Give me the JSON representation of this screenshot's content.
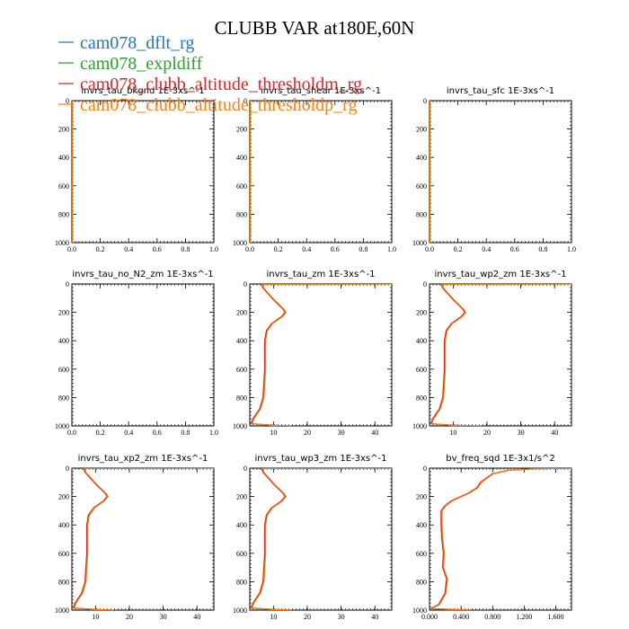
{
  "figure": {
    "title": "CLUBB VAR at180E,60N",
    "legend": [
      {
        "label": "cam078_dflt_rg",
        "color": "#1f77b4"
      },
      {
        "label": "cam078_expldiff",
        "color": "#2ca02c"
      },
      {
        "label": "cam078_clubb_altitude_thresholdm_rg",
        "color": "#d62728"
      },
      {
        "label": "cam078_clubb_altitude_thresholdp_rg",
        "color": "#ff7f0e"
      }
    ]
  },
  "chart_data": [
    {
      "type": "line",
      "title": "invrs_tau_bkgnd   1E-3xs^-1",
      "xlim": [
        0,
        1
      ],
      "ylim": [
        1000,
        0
      ],
      "xticks": [
        0,
        0.2,
        0.4,
        0.6,
        0.8,
        1.0
      ],
      "xtick_labels": [
        "0.0",
        "0.2",
        "0.4",
        "0.6",
        "0.8",
        "1.0"
      ],
      "yticks": [
        0,
        200,
        400,
        600,
        800,
        1000
      ],
      "ytick_labels": [
        "0",
        "200",
        "400",
        "600",
        "800",
        "1000"
      ],
      "profile": [
        [
          0,
          0
        ],
        [
          0,
          1000
        ]
      ]
    },
    {
      "type": "line",
      "title": "invrs_tau_shear   1E-3xs^-1",
      "xlim": [
        0,
        1
      ],
      "ylim": [
        1000,
        0
      ],
      "xticks": [
        0,
        0.2,
        0.4,
        0.6,
        0.8,
        1.0
      ],
      "xtick_labels": [
        "0.0",
        "0.2",
        "0.4",
        "0.6",
        "0.8",
        "1.0"
      ],
      "yticks": [
        0,
        200,
        400,
        600,
        800,
        1000
      ],
      "ytick_labels": [
        "0",
        "200",
        "400",
        "600",
        "800",
        "1000"
      ],
      "profile": [
        [
          0,
          0
        ],
        [
          0,
          1000
        ]
      ]
    },
    {
      "type": "line",
      "title": "invrs_tau_sfc   1E-3xs^-1",
      "xlim": [
        0,
        1
      ],
      "ylim": [
        1000,
        0
      ],
      "xticks": [
        0,
        0.2,
        0.4,
        0.6,
        0.8,
        1.0
      ],
      "xtick_labels": [
        "0.0",
        "0.2",
        "0.4",
        "0.6",
        "0.8",
        "1.0"
      ],
      "yticks": [
        0,
        200,
        400,
        600,
        800,
        1000
      ],
      "ytick_labels": [
        "0",
        "200",
        "400",
        "600",
        "800",
        "1000"
      ],
      "profile": [
        [
          0,
          0
        ],
        [
          0,
          1000
        ]
      ]
    },
    {
      "type": "line",
      "title": "invrs_tau_no_N2_zm   1E-3xs^-1",
      "xlim": [
        0,
        1
      ],
      "ylim": [
        1000,
        0
      ],
      "xticks": [
        0,
        0.2,
        0.4,
        0.6,
        0.8,
        1.0
      ],
      "xtick_labels": [
        "0.0",
        "0.2",
        "0.4",
        "0.6",
        "0.8",
        "1.0"
      ],
      "yticks": [
        0,
        200,
        400,
        600,
        800,
        1000
      ],
      "ytick_labels": [
        "0",
        "200",
        "400",
        "600",
        "800",
        "1000"
      ],
      "profile": []
    },
    {
      "type": "line",
      "title": "invrs_tau_zm   1E-3xs^-1",
      "xlim": [
        3,
        45
      ],
      "ylim": [
        1000,
        0
      ],
      "xticks": [
        10,
        20,
        30,
        40
      ],
      "xtick_labels": [
        "10",
        "20",
        "30",
        "40"
      ],
      "yticks": [
        0,
        200,
        400,
        600,
        800,
        1000
      ],
      "ytick_labels": [
        "0",
        "200",
        "400",
        "600",
        "800",
        "1000"
      ],
      "profile": [
        [
          45,
          0
        ],
        [
          6.5,
          2
        ],
        [
          7,
          30
        ],
        [
          10,
          110
        ],
        [
          13,
          180
        ],
        [
          13.5,
          200
        ],
        [
          12.5,
          230
        ],
        [
          9.5,
          280
        ],
        [
          8,
          330
        ],
        [
          7.5,
          400
        ],
        [
          7.5,
          600
        ],
        [
          7,
          800
        ],
        [
          6,
          880
        ],
        [
          4,
          950
        ],
        [
          3.5,
          985
        ],
        [
          10,
          996
        ],
        [
          15,
          1000
        ]
      ]
    },
    {
      "type": "line",
      "title": "invrs_tau_wp2_zm   1E-3xs^-1",
      "xlim": [
        3,
        45
      ],
      "ylim": [
        1000,
        0
      ],
      "xticks": [
        10,
        20,
        30,
        40
      ],
      "xtick_labels": [
        "10",
        "20",
        "30",
        "40"
      ],
      "yticks": [
        0,
        200,
        400,
        600,
        800,
        1000
      ],
      "ytick_labels": [
        "0",
        "200",
        "400",
        "600",
        "800",
        "1000"
      ],
      "profile": [
        [
          45,
          0
        ],
        [
          6.5,
          2
        ],
        [
          7,
          30
        ],
        [
          10,
          110
        ],
        [
          13,
          180
        ],
        [
          13.5,
          200
        ],
        [
          12.5,
          230
        ],
        [
          9.5,
          280
        ],
        [
          8,
          330
        ],
        [
          7.5,
          400
        ],
        [
          7.5,
          600
        ],
        [
          7,
          800
        ],
        [
          6,
          880
        ],
        [
          4,
          950
        ],
        [
          3.5,
          985
        ],
        [
          10,
          996
        ],
        [
          18,
          1000
        ]
      ]
    },
    {
      "type": "line",
      "title": "invrs_tau_xp2_zm   1E-3xs^-1",
      "xlim": [
        3,
        45
      ],
      "ylim": [
        1000,
        0
      ],
      "xticks": [
        10,
        20,
        30,
        40
      ],
      "xtick_labels": [
        "10",
        "20",
        "30",
        "40"
      ],
      "yticks": [
        0,
        200,
        400,
        600,
        800,
        1000
      ],
      "ytick_labels": [
        "0",
        "200",
        "400",
        "600",
        "800",
        "1000"
      ],
      "profile": [
        [
          45,
          0
        ],
        [
          6.5,
          2
        ],
        [
          7,
          30
        ],
        [
          10,
          110
        ],
        [
          13,
          180
        ],
        [
          13.5,
          200
        ],
        [
          12.5,
          230
        ],
        [
          9.5,
          280
        ],
        [
          8,
          330
        ],
        [
          7.5,
          400
        ],
        [
          7.5,
          600
        ],
        [
          7,
          800
        ],
        [
          6,
          880
        ],
        [
          4,
          950
        ],
        [
          3.5,
          985
        ],
        [
          10,
          996
        ],
        [
          15,
          1000
        ]
      ]
    },
    {
      "type": "line",
      "title": "invrs_tau_wp3_zm   1E-3xs^-1",
      "xlim": [
        3,
        45
      ],
      "ylim": [
        1000,
        0
      ],
      "xticks": [
        10,
        20,
        30,
        40
      ],
      "xtick_labels": [
        "10",
        "20",
        "30",
        "40"
      ],
      "yticks": [
        0,
        200,
        400,
        600,
        800,
        1000
      ],
      "ytick_labels": [
        "0",
        "200",
        "400",
        "600",
        "800",
        "1000"
      ],
      "profile": [
        [
          45,
          0
        ],
        [
          6.5,
          2
        ],
        [
          7,
          30
        ],
        [
          10,
          110
        ],
        [
          13,
          180
        ],
        [
          13.5,
          200
        ],
        [
          12.5,
          230
        ],
        [
          9.5,
          280
        ],
        [
          8,
          330
        ],
        [
          7.5,
          400
        ],
        [
          7.5,
          600
        ],
        [
          7,
          800
        ],
        [
          6,
          880
        ],
        [
          4,
          950
        ],
        [
          3.5,
          985
        ],
        [
          10,
          996
        ],
        [
          15,
          1000
        ]
      ]
    },
    {
      "type": "line",
      "title": "bv_freq_sqd   1E-3x1/s^2",
      "xlim": [
        0,
        1.8
      ],
      "ylim": [
        1000,
        0
      ],
      "xticks": [
        0,
        0.4,
        0.8,
        1.2,
        1.6
      ],
      "xtick_labels": [
        "0.000",
        "0.400",
        "0.800",
        "1.200",
        "1.600"
      ],
      "yticks": [
        0,
        200,
        400,
        600,
        800,
        1000
      ],
      "ytick_labels": [
        "0",
        "200",
        "400",
        "600",
        "800",
        "1000"
      ],
      "profile": [
        [
          1.8,
          0
        ],
        [
          1.3,
          5
        ],
        [
          1.0,
          15
        ],
        [
          0.8,
          40
        ],
        [
          0.65,
          100
        ],
        [
          0.6,
          140
        ],
        [
          0.5,
          175
        ],
        [
          0.4,
          200
        ],
        [
          0.28,
          230
        ],
        [
          0.2,
          265
        ],
        [
          0.15,
          300
        ],
        [
          0.15,
          400
        ],
        [
          0.16,
          500
        ],
        [
          0.18,
          600
        ],
        [
          0.17,
          700
        ],
        [
          0.22,
          780
        ],
        [
          0.2,
          880
        ],
        [
          0.12,
          960
        ],
        [
          0.02,
          990
        ],
        [
          0.5,
          1000
        ]
      ]
    }
  ]
}
